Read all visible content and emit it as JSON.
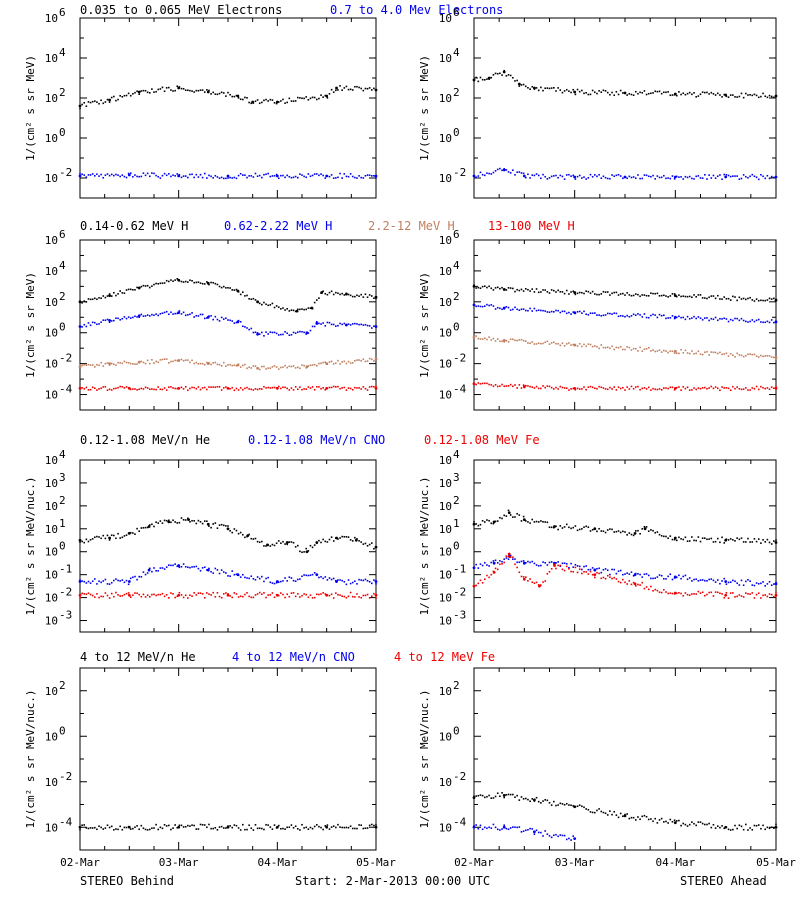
{
  "footer": {
    "left": "STEREO Behind",
    "center": "Start:  2-Mar-2013 00:00 UTC",
    "right": "STEREO Ahead"
  },
  "x_tick_labels": [
    "02-Mar",
    "03-Mar",
    "04-Mar",
    "05-Mar"
  ],
  "colors": {
    "black": "#000000",
    "blue": "#0000ee",
    "tan": "#c08060",
    "red": "#ee0000"
  },
  "chart_data": [
    {
      "type": "scatter",
      "row": 0,
      "panel": "left",
      "ylabel": "1/(cm² s sr MeV)",
      "ylim_log10": [
        -3,
        6
      ],
      "y_ticks_log10": [
        -2,
        0,
        2,
        4,
        6
      ],
      "x_days": [
        0,
        3
      ],
      "series": [
        {
          "name": "0.035 to 0.065 MeV Electrons",
          "color": "#000000",
          "x": [
            0,
            0.3,
            0.6,
            1.0,
            1.3,
            1.6,
            1.75,
            2.0,
            2.5,
            2.6,
            3.0
          ],
          "log10_y": [
            1.6,
            1.9,
            2.3,
            2.5,
            2.3,
            2.1,
            1.8,
            1.8,
            2.1,
            2.5,
            2.4
          ]
        },
        {
          "name": "0.7 to 4.0 Mev Electrons",
          "color": "#0000ee",
          "x": [
            0,
            0.5,
            1.0,
            1.5,
            2.0,
            2.5,
            3.0
          ],
          "log10_y": [
            -1.9,
            -1.85,
            -1.9,
            -1.9,
            -1.9,
            -1.9,
            -1.9
          ]
        }
      ]
    },
    {
      "type": "scatter",
      "row": 0,
      "panel": "right",
      "ylabel": "1/(cm² s sr MeV)",
      "ylim_log10": [
        -3,
        6
      ],
      "y_ticks_log10": [
        -2,
        0,
        2,
        4,
        6
      ],
      "x_days": [
        0,
        3
      ],
      "series": [
        {
          "name": "0.035 to 0.065 MeV Electrons",
          "color": "#000000",
          "x": [
            0,
            0.15,
            0.3,
            0.45,
            0.6,
            1.0,
            1.5,
            2.0,
            2.5,
            3.0
          ],
          "log10_y": [
            2.9,
            3.0,
            3.3,
            2.7,
            2.5,
            2.3,
            2.25,
            2.2,
            2.15,
            2.1
          ]
        },
        {
          "name": "0.7 to 4.0 Mev Electrons",
          "color": "#0000ee",
          "x": [
            0,
            0.3,
            0.5,
            1.0,
            1.5,
            2.0,
            2.5,
            3.0
          ],
          "log10_y": [
            -1.9,
            -1.6,
            -1.9,
            -1.95,
            -1.95,
            -1.95,
            -1.95,
            -1.95
          ]
        }
      ]
    },
    {
      "type": "scatter",
      "row": 1,
      "panel": "left",
      "ylabel": "1/(cm² s sr MeV)",
      "ylim_log10": [
        -5,
        6
      ],
      "y_ticks_log10": [
        -4,
        -2,
        0,
        2,
        4,
        6
      ],
      "x_days": [
        0,
        3
      ],
      "series": [
        {
          "name": "0.14-0.62 MeV H",
          "color": "#000000",
          "x": [
            0,
            0.3,
            0.6,
            1.0,
            1.3,
            1.6,
            1.8,
            2.2,
            2.35,
            2.45,
            2.7,
            3.0
          ],
          "log10_y": [
            2.0,
            2.4,
            2.9,
            3.4,
            3.2,
            2.7,
            2.0,
            1.4,
            1.6,
            2.6,
            2.5,
            2.3
          ]
        },
        {
          "name": "0.62-2.22 MeV H",
          "color": "#0000ee",
          "x": [
            0,
            0.3,
            0.6,
            1.0,
            1.3,
            1.6,
            1.8,
            2.3,
            2.4,
            2.7,
            3.0
          ],
          "log10_y": [
            0.4,
            0.8,
            1.1,
            1.3,
            1.0,
            0.7,
            -0.1,
            0.0,
            0.6,
            0.5,
            0.4
          ]
        },
        {
          "name": "2.2-12 MeV H",
          "color": "#c08060",
          "x": [
            0,
            0.3,
            0.6,
            1.0,
            1.3,
            1.6,
            1.8,
            2.3,
            2.5,
            3.0
          ],
          "log10_y": [
            -2.2,
            -2.0,
            -1.9,
            -1.8,
            -2.0,
            -2.1,
            -2.3,
            -2.2,
            -2.0,
            -1.7
          ]
        },
        {
          "name": "13-100 MeV H",
          "color": "#ee0000",
          "x": [
            0,
            0.5,
            1.0,
            1.5,
            2.0,
            2.5,
            3.0
          ],
          "log10_y": [
            -3.6,
            -3.6,
            -3.6,
            -3.6,
            -3.6,
            -3.6,
            -3.6
          ]
        }
      ]
    },
    {
      "type": "scatter",
      "row": 1,
      "panel": "right",
      "ylabel": "1/(cm² s sr MeV)",
      "ylim_log10": [
        -5,
        6
      ],
      "y_ticks_log10": [
        -4,
        -2,
        0,
        2,
        4,
        6
      ],
      "x_days": [
        0,
        3
      ],
      "series": [
        {
          "name": "0.14-0.62 MeV H",
          "color": "#000000",
          "x": [
            0,
            0.3,
            1.0,
            2.0,
            3.0
          ],
          "log10_y": [
            3.0,
            2.8,
            2.6,
            2.4,
            2.1
          ]
        },
        {
          "name": "0.62-2.22 MeV H",
          "color": "#0000ee",
          "x": [
            0,
            0.3,
            1.0,
            2.0,
            3.0
          ],
          "log10_y": [
            1.8,
            1.6,
            1.3,
            1.0,
            0.7
          ]
        },
        {
          "name": "2.2-12 MeV H",
          "color": "#c08060",
          "x": [
            0,
            0.3,
            1.0,
            2.0,
            3.0
          ],
          "log10_y": [
            -0.3,
            -0.5,
            -0.8,
            -1.2,
            -1.6
          ]
        },
        {
          "name": "13-100 MeV H",
          "color": "#ee0000",
          "x": [
            0,
            0.5,
            1.0,
            2.0,
            3.0
          ],
          "log10_y": [
            -3.3,
            -3.5,
            -3.6,
            -3.6,
            -3.6
          ]
        }
      ]
    },
    {
      "type": "scatter",
      "row": 2,
      "panel": "left",
      "ylabel": "1/(cm² s sr MeV/nuc.)",
      "ylim_log10": [
        -3.5,
        4
      ],
      "y_ticks_log10": [
        -3,
        -2,
        -1,
        0,
        1,
        2,
        3,
        4
      ],
      "x_days": [
        0,
        3
      ],
      "series": [
        {
          "name": "0.12-1.08 MeV/n He",
          "color": "#000000",
          "x": [
            0,
            0.3,
            0.5,
            0.7,
            0.9,
            1.1,
            1.3,
            1.5,
            1.7,
            1.9,
            2.1,
            2.3,
            2.4,
            2.6,
            2.8,
            3.0
          ],
          "log10_y": [
            0.5,
            0.6,
            0.8,
            1.1,
            1.3,
            1.4,
            1.2,
            1.0,
            0.7,
            0.3,
            0.4,
            0.0,
            0.4,
            0.6,
            0.5,
            0.2
          ]
        },
        {
          "name": "0.12-1.08 MeV/n CNO",
          "color": "#0000ee",
          "x": [
            0,
            0.5,
            0.7,
            1.0,
            1.3,
            1.6,
            2.0,
            2.4,
            2.6,
            3.0
          ],
          "log10_y": [
            -1.3,
            -1.3,
            -0.8,
            -0.6,
            -0.8,
            -1.0,
            -1.3,
            -1.0,
            -1.3,
            -1.3
          ]
        },
        {
          "name": "0.12-1.08 MeV Fe",
          "color": "#ee0000",
          "x": [
            0,
            0.5,
            1.0,
            1.5,
            2.0,
            2.5,
            3.0
          ],
          "log10_y": [
            -1.9,
            -1.9,
            -1.9,
            -1.9,
            -1.9,
            -1.9,
            -1.9
          ]
        }
      ]
    },
    {
      "type": "scatter",
      "row": 2,
      "panel": "right",
      "ylabel": "1/(cm² s sr MeV/nuc.)",
      "ylim_log10": [
        -3.5,
        4
      ],
      "y_ticks_log10": [
        -3,
        -2,
        -1,
        0,
        1,
        2,
        3,
        4
      ],
      "x_days": [
        0,
        3
      ],
      "series": [
        {
          "name": "0.12-1.08 MeV/n He",
          "color": "#000000",
          "x": [
            0,
            0.2,
            0.35,
            0.5,
            0.8,
            1.2,
            1.6,
            1.7,
            2.0,
            2.5,
            3.0
          ],
          "log10_y": [
            1.2,
            1.3,
            1.7,
            1.4,
            1.1,
            1.0,
            0.8,
            1.0,
            0.6,
            0.5,
            0.4
          ]
        },
        {
          "name": "0.12-1.08 MeV/n CNO",
          "color": "#0000ee",
          "x": [
            0,
            0.2,
            0.35,
            0.5,
            0.8,
            1.2,
            1.6,
            2.0,
            2.5,
            3.0
          ],
          "log10_y": [
            -0.7,
            -0.5,
            -0.2,
            -0.5,
            -0.5,
            -0.8,
            -1.0,
            -1.1,
            -1.3,
            -1.4
          ]
        },
        {
          "name": "0.12-1.08 MeV Fe",
          "color": "#ee0000",
          "x": [
            0,
            0.2,
            0.35,
            0.5,
            0.65,
            0.8,
            1.2,
            1.6,
            2.0,
            2.5,
            3.0
          ],
          "log10_y": [
            -1.5,
            -0.9,
            -0.1,
            -1.2,
            -1.5,
            -0.6,
            -1.0,
            -1.4,
            -1.8,
            -1.9,
            -1.9
          ]
        }
      ]
    },
    {
      "type": "scatter",
      "row": 3,
      "panel": "left",
      "ylabel": "1/(cm² s sr MeV/nuc.)",
      "ylim_log10": [
        -5,
        3
      ],
      "y_ticks_log10": [
        -4,
        -2,
        0,
        2
      ],
      "x_days": [
        0,
        3
      ],
      "series": [
        {
          "name": "4 to 12 MeV/n He",
          "color": "#000000",
          "x": [
            0,
            0.5,
            1.0,
            1.5,
            2.0,
            2.5,
            3.0
          ],
          "log10_y": [
            -4.0,
            -4.0,
            -4.0,
            -4.0,
            -4.0,
            -4.0,
            -4.0
          ]
        },
        {
          "name": "4 to 12 MeV/n CNO",
          "color": "#0000ee",
          "x": [],
          "log10_y": []
        },
        {
          "name": "4 to 12 MeV Fe",
          "color": "#ee0000",
          "x": [],
          "log10_y": []
        }
      ]
    },
    {
      "type": "scatter",
      "row": 3,
      "panel": "right",
      "ylabel": "1/(cm² s sr MeV/nuc.)",
      "ylim_log10": [
        -5,
        3
      ],
      "y_ticks_log10": [
        -4,
        -2,
        0,
        2
      ],
      "x_days": [
        0,
        3
      ],
      "series": [
        {
          "name": "4 to 12 MeV/n He",
          "color": "#000000",
          "x": [
            0,
            0.3,
            0.6,
            1.0,
            1.5,
            2.0,
            2.5,
            3.0
          ],
          "log10_y": [
            -2.7,
            -2.6,
            -2.8,
            -3.1,
            -3.5,
            -3.8,
            -4.0,
            -4.0
          ]
        },
        {
          "name": "4 to 12 MeV/n CNO",
          "color": "#0000ee",
          "x": [
            0,
            0.3,
            0.6,
            1.0
          ],
          "log10_y": [
            -4.0,
            -4.0,
            -4.2,
            -4.5
          ]
        },
        {
          "name": "4 to 12 MeV Fe",
          "color": "#ee0000",
          "x": [],
          "log10_y": []
        }
      ]
    }
  ]
}
